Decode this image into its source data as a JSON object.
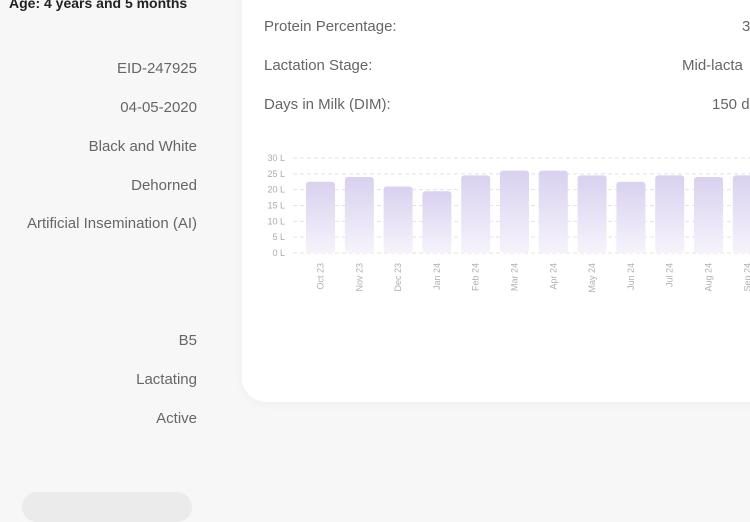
{
  "animal": {
    "age_text": "Age: 4 years and 5 months",
    "values": [
      "EID-247925",
      "04-05-2020",
      "Black and White",
      "Dehorned",
      "Artificial Insemination (AI)",
      "B5",
      "Lactating",
      "Active"
    ]
  },
  "details": {
    "rows": [
      {
        "label": "Protein Percentage:",
        "value": "3"
      },
      {
        "label": "Lactation Stage:",
        "value": "Mid-lacta"
      },
      {
        "label": "Days in Milk (DIM):",
        "value": "150 d"
      }
    ]
  },
  "chart_data": {
    "type": "bar",
    "categories": [
      "Oct 23",
      "Nov 23",
      "Dec 23",
      "Jan 24",
      "Feb 24",
      "Mar 24",
      "Apr 24",
      "May 24",
      "Jun 24",
      "Jul 24",
      "Aug 24",
      "Sep 24"
    ],
    "values": [
      22.5,
      24,
      21,
      19.5,
      24.5,
      26,
      26,
      24.5,
      22.5,
      24.5,
      24,
      24.5
    ],
    "ylim": [
      0,
      30
    ],
    "yticks": [
      "0 L",
      "5 L",
      "10 L",
      "15 L",
      "20 L",
      "25 L",
      "30 L"
    ],
    "bar_color": "#d9d1ef",
    "grid": true
  }
}
